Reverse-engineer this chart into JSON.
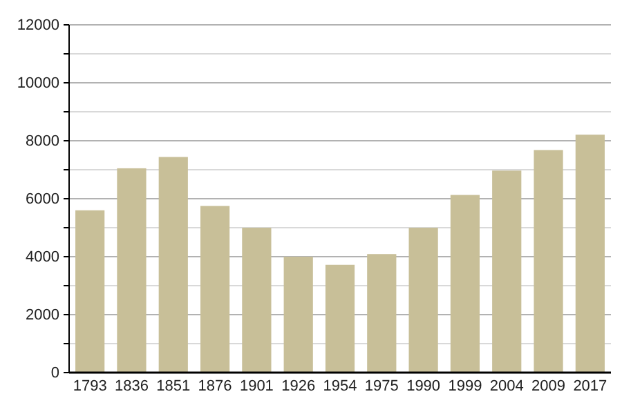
{
  "chart_data": {
    "type": "bar",
    "categories": [
      "1793",
      "1836",
      "1851",
      "1876",
      "1901",
      "1926",
      "1954",
      "1975",
      "1990",
      "1999",
      "2004",
      "2009",
      "2017"
    ],
    "values": [
      5600,
      7050,
      7440,
      5750,
      5000,
      4000,
      3720,
      4090,
      5000,
      6130,
      6970,
      7680,
      8210
    ],
    "color": "#c8bf98",
    "ylim": [
      0,
      12000
    ],
    "yticks": [
      0,
      {
        "value": 1000,
        "label": null
      },
      2000,
      {
        "value": 3000,
        "label": null
      },
      4000,
      {
        "value": 5000,
        "label": null
      },
      6000,
      {
        "value": 7000,
        "label": null
      },
      8000,
      {
        "value": 9000,
        "label": null
      },
      10000,
      {
        "value": 11000,
        "label": null
      },
      12000
    ],
    "grid": true
  }
}
